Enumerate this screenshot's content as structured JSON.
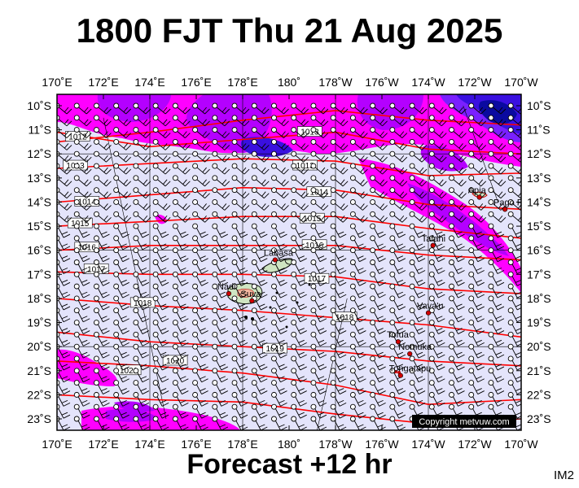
{
  "title": "1800 FJT Thu 21 Aug 2025",
  "footer": "Forecast +12 hr",
  "image_tag": "IM2",
  "copyright": "Copyright metvuw.com",
  "lon_labels": [
    "170˚E",
    "172˚E",
    "174˚E",
    "176˚E",
    "178˚E",
    "180˚",
    "178˚W",
    "176˚W",
    "174˚W",
    "172˚W",
    "170˚W"
  ],
  "lat_labels": [
    "10˚S",
    "11˚S",
    "12˚S",
    "13˚S",
    "14˚S",
    "15˚S",
    "16˚S",
    "17˚S",
    "18˚S",
    "19˚S",
    "20˚S",
    "21˚S",
    "22˚S",
    "23˚S"
  ],
  "isobars": [
    {
      "label": "1012",
      "lat": -11.3,
      "lon": 170.4
    },
    {
      "label": "1013",
      "lat": -11.1,
      "lon": 180.4
    },
    {
      "label": "1013",
      "lat": -12.5,
      "lon": 170.3
    },
    {
      "label": "1013",
      "lat": -12.5,
      "lon": 180.2
    },
    {
      "label": "1014",
      "lat": -14.0,
      "lon": 170.8
    },
    {
      "label": "1014",
      "lat": -13.6,
      "lon": 180.8
    },
    {
      "label": "1015",
      "lat": -14.9,
      "lon": 170.5
    },
    {
      "label": "1015",
      "lat": -14.7,
      "lon": 180.5
    },
    {
      "label": "1016",
      "lat": -15.9,
      "lon": 170.8
    },
    {
      "label": "1016",
      "lat": -15.8,
      "lon": 180.6
    },
    {
      "label": "1017",
      "lat": -16.8,
      "lon": 171.2
    },
    {
      "label": "1017",
      "lat": -17.2,
      "lon": 180.7
    },
    {
      "label": "1018",
      "lat": -18.2,
      "lon": 173.2
    },
    {
      "label": "1018",
      "lat": -18.8,
      "lon": 181.9
    },
    {
      "label": "1019",
      "lat": -20.1,
      "lon": 178.9
    },
    {
      "label": "1020",
      "lat": -20.6,
      "lon": 174.6
    },
    {
      "label": "1021",
      "lat": -21.0,
      "lon": 172.6
    }
  ],
  "places": [
    {
      "name": "Apia",
      "lat": -13.8,
      "lon": 188.2
    },
    {
      "name": "Pago Pago",
      "lat": -14.3,
      "lon": 189.3
    },
    {
      "name": "Tafahi",
      "lat": -15.8,
      "lon": 186.2
    },
    {
      "name": "Labasa",
      "lat": -16.4,
      "lon": 179.4
    },
    {
      "name": "Nadi",
      "lat": -17.8,
      "lon": 177.4
    },
    {
      "name": "Suva",
      "lat": -18.1,
      "lon": 178.4
    },
    {
      "name": "Vava'u",
      "lat": -18.6,
      "lon": 186.0
    },
    {
      "name": "Tofua",
      "lat": -19.8,
      "lon": 184.7
    },
    {
      "name": "Nomuka",
      "lat": -20.3,
      "lon": 185.2
    },
    {
      "name": "Tongatapu",
      "lat": -21.2,
      "lon": 184.8
    }
  ],
  "colors": {
    "ocean": "#e4e4fb",
    "isobar": "#ff0000",
    "rain_light": "#ff00ff",
    "rain_medium": "#b400ff",
    "rain_heavy": "#3a10e0",
    "rain_extreme": "#0a0aa0",
    "land": "#cfe5c2",
    "barb": "#000000"
  }
}
